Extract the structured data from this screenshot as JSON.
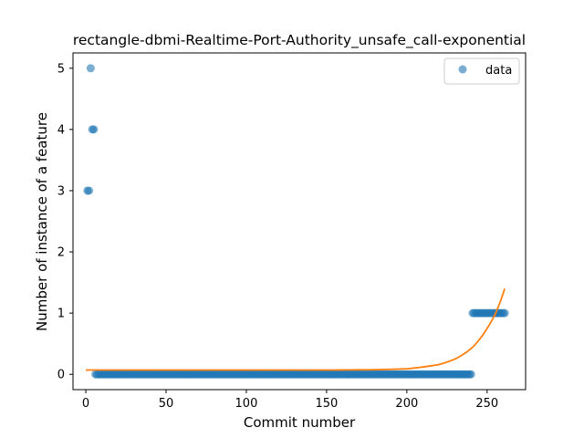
{
  "chart_data": {
    "type": "scatter",
    "title": "rectangle-dbmi-Realtime-Port-Authority_unsafe_call-exponential",
    "xlabel": "Commit number",
    "ylabel": "Number of instance of a feature",
    "xlim": [
      -8,
      274
    ],
    "ylim": [
      -0.25,
      5.25
    ],
    "xticks": [
      0,
      50,
      100,
      150,
      200,
      250
    ],
    "yticks": [
      0,
      1,
      2,
      3,
      4,
      5
    ],
    "grid": false,
    "legend": {
      "position": "top-right",
      "entries": [
        {
          "label": "data",
          "marker": "circle",
          "color": "#1f77b4"
        }
      ]
    },
    "colors": {
      "scatter": "#1f77b4",
      "fit": "#ff7f0e"
    },
    "series": [
      {
        "name": "data",
        "kind": "scatter",
        "points": [
          [
            1,
            3
          ],
          [
            2,
            3
          ],
          [
            3,
            5
          ],
          [
            4,
            4
          ],
          [
            5,
            4
          ],
          [
            6,
            0
          ],
          {
            "x_from": 7,
            "x_to": 240,
            "y": 0
          },
          {
            "x_from": 241,
            "x_to": 261,
            "y": 1
          }
        ]
      },
      {
        "kind": "line",
        "model": "exponential",
        "points": [
          [
            0,
            0.07
          ],
          [
            50,
            0.07
          ],
          [
            100,
            0.07
          ],
          [
            150,
            0.07
          ],
          [
            180,
            0.075
          ],
          [
            200,
            0.09
          ],
          [
            220,
            0.16
          ],
          [
            230,
            0.25
          ],
          [
            240,
            0.42
          ],
          [
            250,
            0.75
          ],
          [
            255,
            0.98
          ],
          [
            261,
            1.4
          ]
        ]
      }
    ]
  }
}
